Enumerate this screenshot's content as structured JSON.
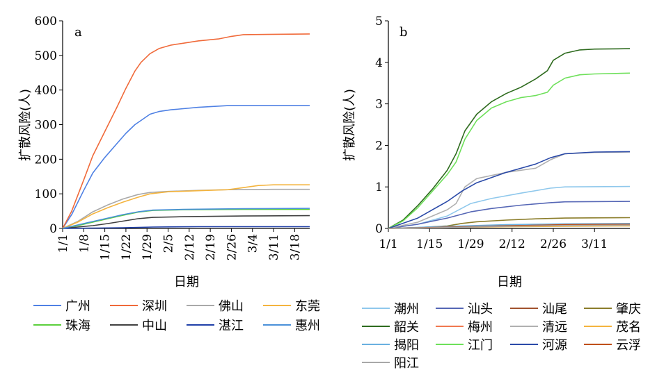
{
  "chart_data": [
    {
      "type": "line",
      "panel_label": "a",
      "xlabel": "日期",
      "ylabel": "扩散风险(人)",
      "ylim": [
        0,
        600
      ],
      "yticks": [
        0,
        100,
        200,
        300,
        400,
        500,
        600
      ],
      "xlim": [
        0,
        82
      ],
      "xticks": [
        {
          "day": 0,
          "label": "1/1"
        },
        {
          "day": 7,
          "label": "1/8"
        },
        {
          "day": 14,
          "label": "1/15"
        },
        {
          "day": 21,
          "label": "1/22"
        },
        {
          "day": 28,
          "label": "1/29"
        },
        {
          "day": 35,
          "label": "2/5"
        },
        {
          "day": 42,
          "label": "2/12"
        },
        {
          "day": 49,
          "label": "2/19"
        },
        {
          "day": 56,
          "label": "2/26"
        },
        {
          "day": 63,
          "label": "3/4"
        },
        {
          "day": 70,
          "label": "3/11"
        },
        {
          "day": 77,
          "label": "3/18"
        }
      ],
      "grid": false,
      "legend_position": "bottom",
      "legend_columns": 4,
      "series": [
        {
          "name": "广州",
          "color": "#4f81e4",
          "points": [
            [
              0,
              0
            ],
            [
              3,
              40
            ],
            [
              7,
              110
            ],
            [
              10,
              160
            ],
            [
              14,
              205
            ],
            [
              18,
              245
            ],
            [
              21,
              275
            ],
            [
              24,
              300
            ],
            [
              26,
              312
            ],
            [
              29,
              330
            ],
            [
              32,
              338
            ],
            [
              36,
              343
            ],
            [
              45,
              350
            ],
            [
              55,
              355
            ],
            [
              82,
              355
            ]
          ]
        },
        {
          "name": "深圳",
          "color": "#f06a3a",
          "points": [
            [
              0,
              0
            ],
            [
              3,
              50
            ],
            [
              7,
              140
            ],
            [
              10,
              210
            ],
            [
              14,
              280
            ],
            [
              18,
              350
            ],
            [
              21,
              405
            ],
            [
              24,
              455
            ],
            [
              26,
              480
            ],
            [
              29,
              505
            ],
            [
              32,
              520
            ],
            [
              36,
              530
            ],
            [
              45,
              542
            ],
            [
              52,
              548
            ],
            [
              56,
              555
            ],
            [
              60,
              560
            ],
            [
              82,
              562
            ]
          ]
        },
        {
          "name": "佛山",
          "color": "#a9a9a9",
          "points": [
            [
              0,
              0
            ],
            [
              5,
              20
            ],
            [
              10,
              48
            ],
            [
              15,
              68
            ],
            [
              20,
              85
            ],
            [
              25,
              98
            ],
            [
              29,
              104
            ],
            [
              35,
              107
            ],
            [
              45,
              110
            ],
            [
              55,
              112
            ],
            [
              70,
              113
            ],
            [
              82,
              113
            ]
          ]
        },
        {
          "name": "东莞",
          "color": "#f4b43e",
          "points": [
            [
              0,
              0
            ],
            [
              5,
              18
            ],
            [
              10,
              42
            ],
            [
              15,
              60
            ],
            [
              20,
              76
            ],
            [
              25,
              90
            ],
            [
              29,
              100
            ],
            [
              35,
              106
            ],
            [
              45,
              109
            ],
            [
              55,
              112
            ],
            [
              60,
              118
            ],
            [
              65,
              124
            ],
            [
              70,
              126
            ],
            [
              82,
              126
            ]
          ]
        },
        {
          "name": "珠海",
          "color": "#5bcf3c",
          "points": [
            [
              0,
              0
            ],
            [
              5,
              8
            ],
            [
              10,
              18
            ],
            [
              15,
              28
            ],
            [
              20,
              38
            ],
            [
              25,
              47
            ],
            [
              30,
              52
            ],
            [
              40,
              54
            ],
            [
              60,
              55
            ],
            [
              82,
              55
            ]
          ]
        },
        {
          "name": "中山",
          "color": "#404040",
          "points": [
            [
              0,
              0
            ],
            [
              5,
              4
            ],
            [
              10,
              8
            ],
            [
              15,
              14
            ],
            [
              20,
              21
            ],
            [
              25,
              28
            ],
            [
              30,
              32
            ],
            [
              40,
              34
            ],
            [
              60,
              36
            ],
            [
              82,
              37
            ]
          ]
        },
        {
          "name": "湛江",
          "color": "#1f3fa8",
          "points": [
            [
              0,
              0
            ],
            [
              10,
              1
            ],
            [
              20,
              2
            ],
            [
              30,
              4
            ],
            [
              45,
              5
            ],
            [
              82,
              5
            ]
          ]
        },
        {
          "name": "惠州",
          "color": "#4a90d9",
          "points": [
            [
              0,
              0
            ],
            [
              5,
              10
            ],
            [
              10,
              20
            ],
            [
              15,
              30
            ],
            [
              20,
              40
            ],
            [
              25,
              48
            ],
            [
              30,
              53
            ],
            [
              40,
              55
            ],
            [
              60,
              57
            ],
            [
              82,
              58
            ]
          ]
        }
      ]
    },
    {
      "type": "line",
      "panel_label": "b",
      "xlabel": "日期",
      "ylabel": "扩散风险(人)",
      "ylim": [
        0,
        5
      ],
      "yticks": [
        0,
        1,
        2,
        3,
        4,
        5
      ],
      "xlim": [
        0,
        82
      ],
      "xticks": [
        {
          "day": 0,
          "label": "1/1"
        },
        {
          "day": 14,
          "label": "1/15"
        },
        {
          "day": 28,
          "label": "1/29"
        },
        {
          "day": 42,
          "label": "2/12"
        },
        {
          "day": 56,
          "label": "2/26"
        },
        {
          "day": 70,
          "label": "3/11"
        }
      ],
      "grid": false,
      "legend_position": "bottom",
      "legend_columns": 4,
      "series": [
        {
          "name": "潮州",
          "color": "#8fc8ec",
          "points": [
            [
              0,
              0
            ],
            [
              10,
              0.1
            ],
            [
              20,
              0.3
            ],
            [
              24,
              0.45
            ],
            [
              28,
              0.6
            ],
            [
              35,
              0.72
            ],
            [
              45,
              0.85
            ],
            [
              55,
              0.97
            ],
            [
              60,
              1.0
            ],
            [
              82,
              1.01
            ]
          ]
        },
        {
          "name": "汕头",
          "color": "#5566b5",
          "points": [
            [
              0,
              0
            ],
            [
              10,
              0.1
            ],
            [
              20,
              0.25
            ],
            [
              28,
              0.4
            ],
            [
              35,
              0.48
            ],
            [
              45,
              0.56
            ],
            [
              55,
              0.62
            ],
            [
              60,
              0.64
            ],
            [
              82,
              0.65
            ]
          ]
        },
        {
          "name": "汕尾",
          "color": "#a0522d",
          "points": [
            [
              0,
              0
            ],
            [
              20,
              0.04
            ],
            [
              40,
              0.08
            ],
            [
              60,
              0.1
            ],
            [
              82,
              0.1
            ]
          ]
        },
        {
          "name": "肇庆",
          "color": "#8b7d2a",
          "points": [
            [
              0,
              0
            ],
            [
              10,
              0.02
            ],
            [
              20,
              0.06
            ],
            [
              25,
              0.12
            ],
            [
              30,
              0.16
            ],
            [
              40,
              0.2
            ],
            [
              50,
              0.23
            ],
            [
              60,
              0.25
            ],
            [
              82,
              0.26
            ]
          ]
        },
        {
          "name": "韶关",
          "color": "#2e6b1e",
          "points": [
            [
              0,
              0
            ],
            [
              5,
              0.2
            ],
            [
              10,
              0.55
            ],
            [
              15,
              0.95
            ],
            [
              20,
              1.4
            ],
            [
              23,
              1.8
            ],
            [
              26,
              2.35
            ],
            [
              30,
              2.75
            ],
            [
              35,
              3.05
            ],
            [
              40,
              3.25
            ],
            [
              45,
              3.4
            ],
            [
              50,
              3.6
            ],
            [
              54,
              3.8
            ],
            [
              56,
              4.05
            ],
            [
              60,
              4.22
            ],
            [
              65,
              4.3
            ],
            [
              70,
              4.32
            ],
            [
              82,
              4.33
            ]
          ]
        },
        {
          "name": "梅州",
          "color": "#f07850",
          "points": [
            [
              0,
              0
            ],
            [
              20,
              0.03
            ],
            [
              40,
              0.05
            ],
            [
              60,
              0.07
            ],
            [
              82,
              0.07
            ]
          ]
        },
        {
          "name": "清远",
          "color": "#b0b0b0",
          "points": [
            [
              0,
              0
            ],
            [
              10,
              0.15
            ],
            [
              20,
              0.45
            ],
            [
              23,
              0.6
            ],
            [
              26,
              1.0
            ],
            [
              30,
              1.2
            ],
            [
              40,
              1.35
            ],
            [
              50,
              1.45
            ],
            [
              55,
              1.65
            ],
            [
              60,
              1.8
            ],
            [
              70,
              1.83
            ],
            [
              82,
              1.84
            ]
          ]
        },
        {
          "name": "茂名",
          "color": "#f4b43e",
          "points": [
            [
              0,
              0
            ],
            [
              20,
              0.02
            ],
            [
              40,
              0.04
            ],
            [
              60,
              0.05
            ],
            [
              82,
              0.06
            ]
          ]
        },
        {
          "name": "揭阳",
          "color": "#6ab0e0",
          "points": [
            [
              0,
              0
            ],
            [
              20,
              0.05
            ],
            [
              40,
              0.09
            ],
            [
              60,
              0.11
            ],
            [
              82,
              0.12
            ]
          ]
        },
        {
          "name": "江门",
          "color": "#6ee05a",
          "points": [
            [
              0,
              0
            ],
            [
              5,
              0.18
            ],
            [
              10,
              0.5
            ],
            [
              15,
              0.9
            ],
            [
              20,
              1.3
            ],
            [
              23,
              1.6
            ],
            [
              26,
              2.15
            ],
            [
              30,
              2.6
            ],
            [
              35,
              2.9
            ],
            [
              40,
              3.05
            ],
            [
              45,
              3.15
            ],
            [
              50,
              3.2
            ],
            [
              54,
              3.28
            ],
            [
              56,
              3.45
            ],
            [
              60,
              3.62
            ],
            [
              65,
              3.7
            ],
            [
              70,
              3.72
            ],
            [
              82,
              3.74
            ]
          ]
        },
        {
          "name": "河源",
          "color": "#2b4aa8",
          "points": [
            [
              0,
              0
            ],
            [
              10,
              0.25
            ],
            [
              20,
              0.65
            ],
            [
              25,
              0.9
            ],
            [
              30,
              1.1
            ],
            [
              40,
              1.35
            ],
            [
              50,
              1.55
            ],
            [
              55,
              1.7
            ],
            [
              60,
              1.8
            ],
            [
              70,
              1.84
            ],
            [
              82,
              1.85
            ]
          ]
        },
        {
          "name": "云浮",
          "color": "#c0501a",
          "points": [
            [
              0,
              0
            ],
            [
              20,
              0.03
            ],
            [
              40,
              0.06
            ],
            [
              60,
              0.09
            ],
            [
              82,
              0.1
            ]
          ]
        },
        {
          "name": "阳江",
          "color": "#a8a8a8",
          "points": [
            [
              0,
              0
            ],
            [
              20,
              0.02
            ],
            [
              40,
              0.05
            ],
            [
              60,
              0.07
            ],
            [
              82,
              0.08
            ]
          ]
        }
      ]
    }
  ]
}
